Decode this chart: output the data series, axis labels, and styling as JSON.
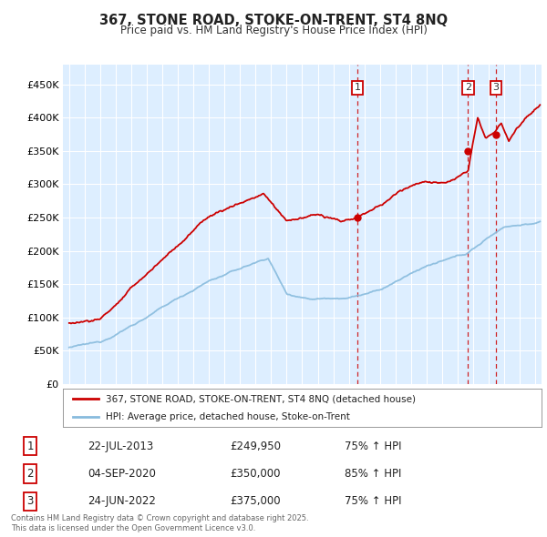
{
  "title": "367, STONE ROAD, STOKE-ON-TRENT, ST4 8NQ",
  "subtitle": "Price paid vs. HM Land Registry's House Price Index (HPI)",
  "legend_line1": "367, STONE ROAD, STOKE-ON-TRENT, ST4 8NQ (detached house)",
  "legend_line2": "HPI: Average price, detached house, Stoke-on-Trent",
  "transactions": [
    {
      "label": "1",
      "date": "22-JUL-2013",
      "price": 249950,
      "hpi_pct": "75% ↑ HPI",
      "x": 2013.55
    },
    {
      "label": "2",
      "date": "04-SEP-2020",
      "price": 350000,
      "hpi_pct": "85% ↑ HPI",
      "x": 2020.67
    },
    {
      "label": "3",
      "date": "24-JUN-2022",
      "price": 375000,
      "hpi_pct": "75% ↑ HPI",
      "x": 2022.47
    }
  ],
  "footnote1": "Contains HM Land Registry data © Crown copyright and database right 2025.",
  "footnote2": "This data is licensed under the Open Government Licence v3.0.",
  "red_color": "#cc0000",
  "blue_color": "#88bbdd",
  "background_color": "#ddeeff",
  "plot_bg": "#ddeeff",
  "grid_color": "#ffffff",
  "ylim": [
    0,
    480000
  ],
  "xlim_start": 1994.6,
  "xlim_end": 2025.4
}
